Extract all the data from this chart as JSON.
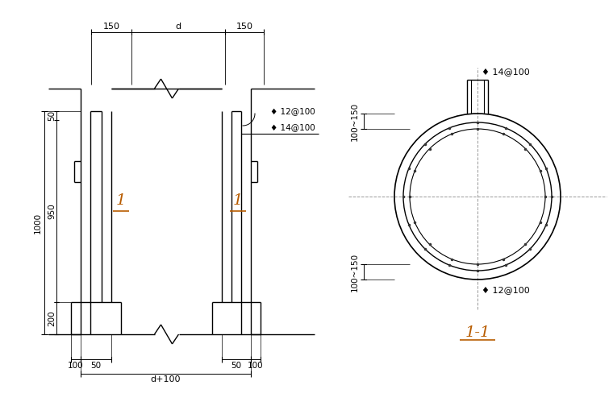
{
  "bg_color": "#ffffff",
  "line_color": "#000000",
  "gray_color": "#666666",
  "orange_color": "#b85c00",
  "dim_text_color": "#000000",
  "ann_text_color": "#000000",
  "left_view": {
    "top_dim_labels": [
      "150",
      "d",
      "150"
    ],
    "bot_dim_labels": [
      "100",
      "50",
      "50",
      "100"
    ],
    "bot_dim_label2": "d+100",
    "vert_dim_labels": [
      "1000",
      "50",
      "950",
      "200"
    ],
    "ann1": "♦ 12@100",
    "ann2": "♦ 14@100",
    "section_label": "1"
  },
  "right_view": {
    "top_ann": "♦ 14@100",
    "bot_ann": "♦ 12@100",
    "dim_top": "100~150",
    "dim_bot": "100~150",
    "title": "1-1"
  }
}
